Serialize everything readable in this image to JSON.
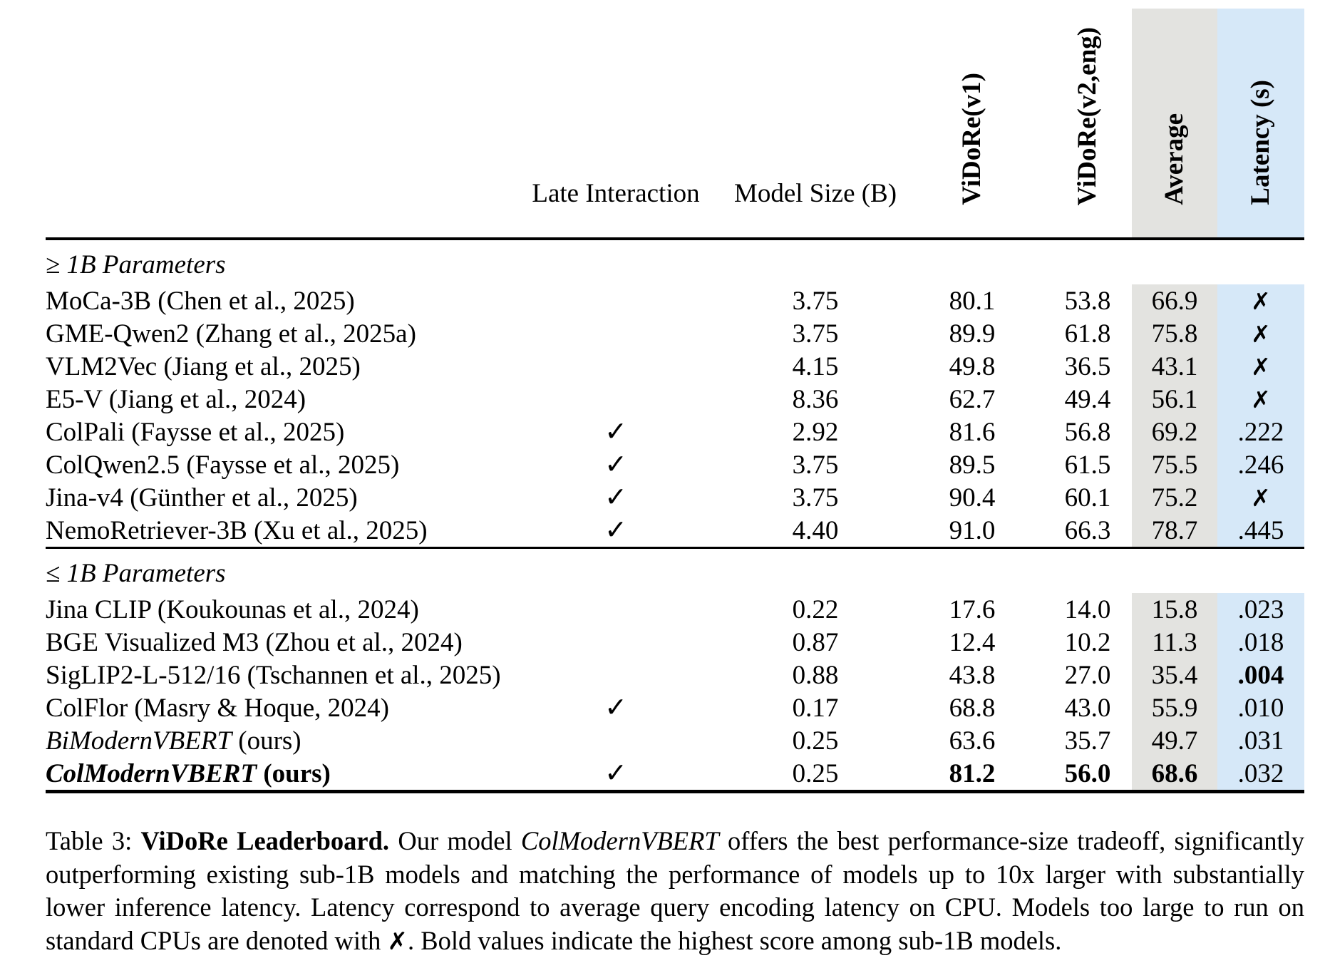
{
  "colors": {
    "average_bg": "#e3e3e0",
    "latency_bg": "#d6e8f8",
    "text": "#000000"
  },
  "table": {
    "check_glyph": "✓",
    "cross_glyph": "✗",
    "header": {
      "model": "",
      "late_interaction": "Late Interaction",
      "model_size": "Model Size (B)",
      "vidore_v1": "ViDoRe(v1)",
      "vidore_v2": "ViDoRe(v2,eng)",
      "average": "Average",
      "latency": "Latency (s)"
    },
    "sections": [
      {
        "label": "≥ 1B Parameters",
        "rows": [
          {
            "model": "MoCa-3B",
            "cite": " (Chen et al., 2025)",
            "li": false,
            "size": "3.75",
            "v1": "80.1",
            "v2": "53.8",
            "avg": "66.9",
            "lat": "✗",
            "lat_cross": true
          },
          {
            "model": "GME-Qwen2",
            "cite": " (Zhang et al., 2025a)",
            "li": false,
            "size": "3.75",
            "v1": "89.9",
            "v2": "61.8",
            "avg": "75.8",
            "lat": "✗",
            "lat_cross": true
          },
          {
            "model": "VLM2Vec",
            "cite": " (Jiang et al., 2025)",
            "li": false,
            "size": "4.15",
            "v1": "49.8",
            "v2": "36.5",
            "avg": "43.1",
            "lat": "✗",
            "lat_cross": true
          },
          {
            "model": "E5-V",
            "cite": " (Jiang et al., 2024)",
            "li": false,
            "size": "8.36",
            "v1": "62.7",
            "v2": "49.4",
            "avg": "56.1",
            "lat": "✗",
            "lat_cross": true
          },
          {
            "model": "ColPali",
            "cite": " (Faysse et al., 2025)",
            "li": true,
            "size": "2.92",
            "v1": "81.6",
            "v2": "56.8",
            "avg": "69.2",
            "lat": ".222"
          },
          {
            "model": "ColQwen2.5",
            "cite": " (Faysse et al., 2025)",
            "li": true,
            "size": "3.75",
            "v1": "89.5",
            "v2": "61.5",
            "avg": "75.5",
            "lat": ".246"
          },
          {
            "model": "Jina-v4",
            "cite": " (Günther et al., 2025)",
            "li": true,
            "size": "3.75",
            "v1": "90.4",
            "v2": "60.1",
            "avg": "75.2",
            "lat": "✗",
            "lat_cross": true
          },
          {
            "model": "NemoRetriever-3B",
            "cite": " (Xu et al., 2025)",
            "li": true,
            "size": "4.40",
            "v1": "91.0",
            "v2": "66.3",
            "avg": "78.7",
            "lat": ".445"
          }
        ]
      },
      {
        "label": "≤ 1B Parameters",
        "rows": [
          {
            "model": "Jina CLIP",
            "cite": " (Koukounas et al., 2024)",
            "li": false,
            "size": "0.22",
            "v1": "17.6",
            "v2": "14.0",
            "avg": "15.8",
            "lat": ".023"
          },
          {
            "model": "BGE Visualized M3",
            "cite": " (Zhou et al., 2024)",
            "li": false,
            "size": "0.87",
            "v1": "12.4",
            "v2": "10.2",
            "avg": "11.3",
            "lat": ".018"
          },
          {
            "model": "SigLIP2-L-512/16",
            "cite": " (Tschannen et al., 2025)",
            "li": false,
            "size": "0.88",
            "v1": "43.8",
            "v2": "27.0",
            "avg": "35.4",
            "lat": ".004",
            "lat_bold": true
          },
          {
            "model": "ColFlor",
            "cite": " (Masry & Hoque, 2024)",
            "li": true,
            "size": "0.17",
            "v1": "68.8",
            "v2": "43.0",
            "avg": "55.9",
            "lat": ".010"
          },
          {
            "model": "BiModernVBERT",
            "cite": " (ours)",
            "model_italic": true,
            "li": false,
            "size": "0.25",
            "v1": "63.6",
            "v2": "35.7",
            "avg": "49.7",
            "lat": ".031"
          },
          {
            "model": "ColModernVBERT",
            "cite": " (ours)",
            "model_italic": true,
            "model_bold": true,
            "cite_bold": true,
            "li": true,
            "size": "0.25",
            "v1": "81.2",
            "v1_bold": true,
            "v2": "56.0",
            "v2_bold": true,
            "avg": "68.6",
            "avg_bold": true,
            "lat": ".032"
          }
        ]
      }
    ]
  },
  "caption": {
    "segments": [
      {
        "text": "Table 3: ",
        "style": "regular"
      },
      {
        "text": "ViDoRe Leaderboard.",
        "style": "bold"
      },
      {
        "text": " Our model ",
        "style": "regular"
      },
      {
        "text": "ColModernVBERT",
        "style": "italic"
      },
      {
        "text": " offers the best performance-size tradeoff, significantly outperforming existing sub-1B models and matching the performance of models up to 10x larger with substantially lower inference latency. Latency correspond to average query encoding latency on CPU. Models too large to run on standard CPUs are denoted with ",
        "style": "regular"
      },
      {
        "text": "✗",
        "style": "bold-glyph"
      },
      {
        "text": ". Bold values indicate the highest score among sub-1B models.",
        "style": "regular"
      }
    ]
  }
}
